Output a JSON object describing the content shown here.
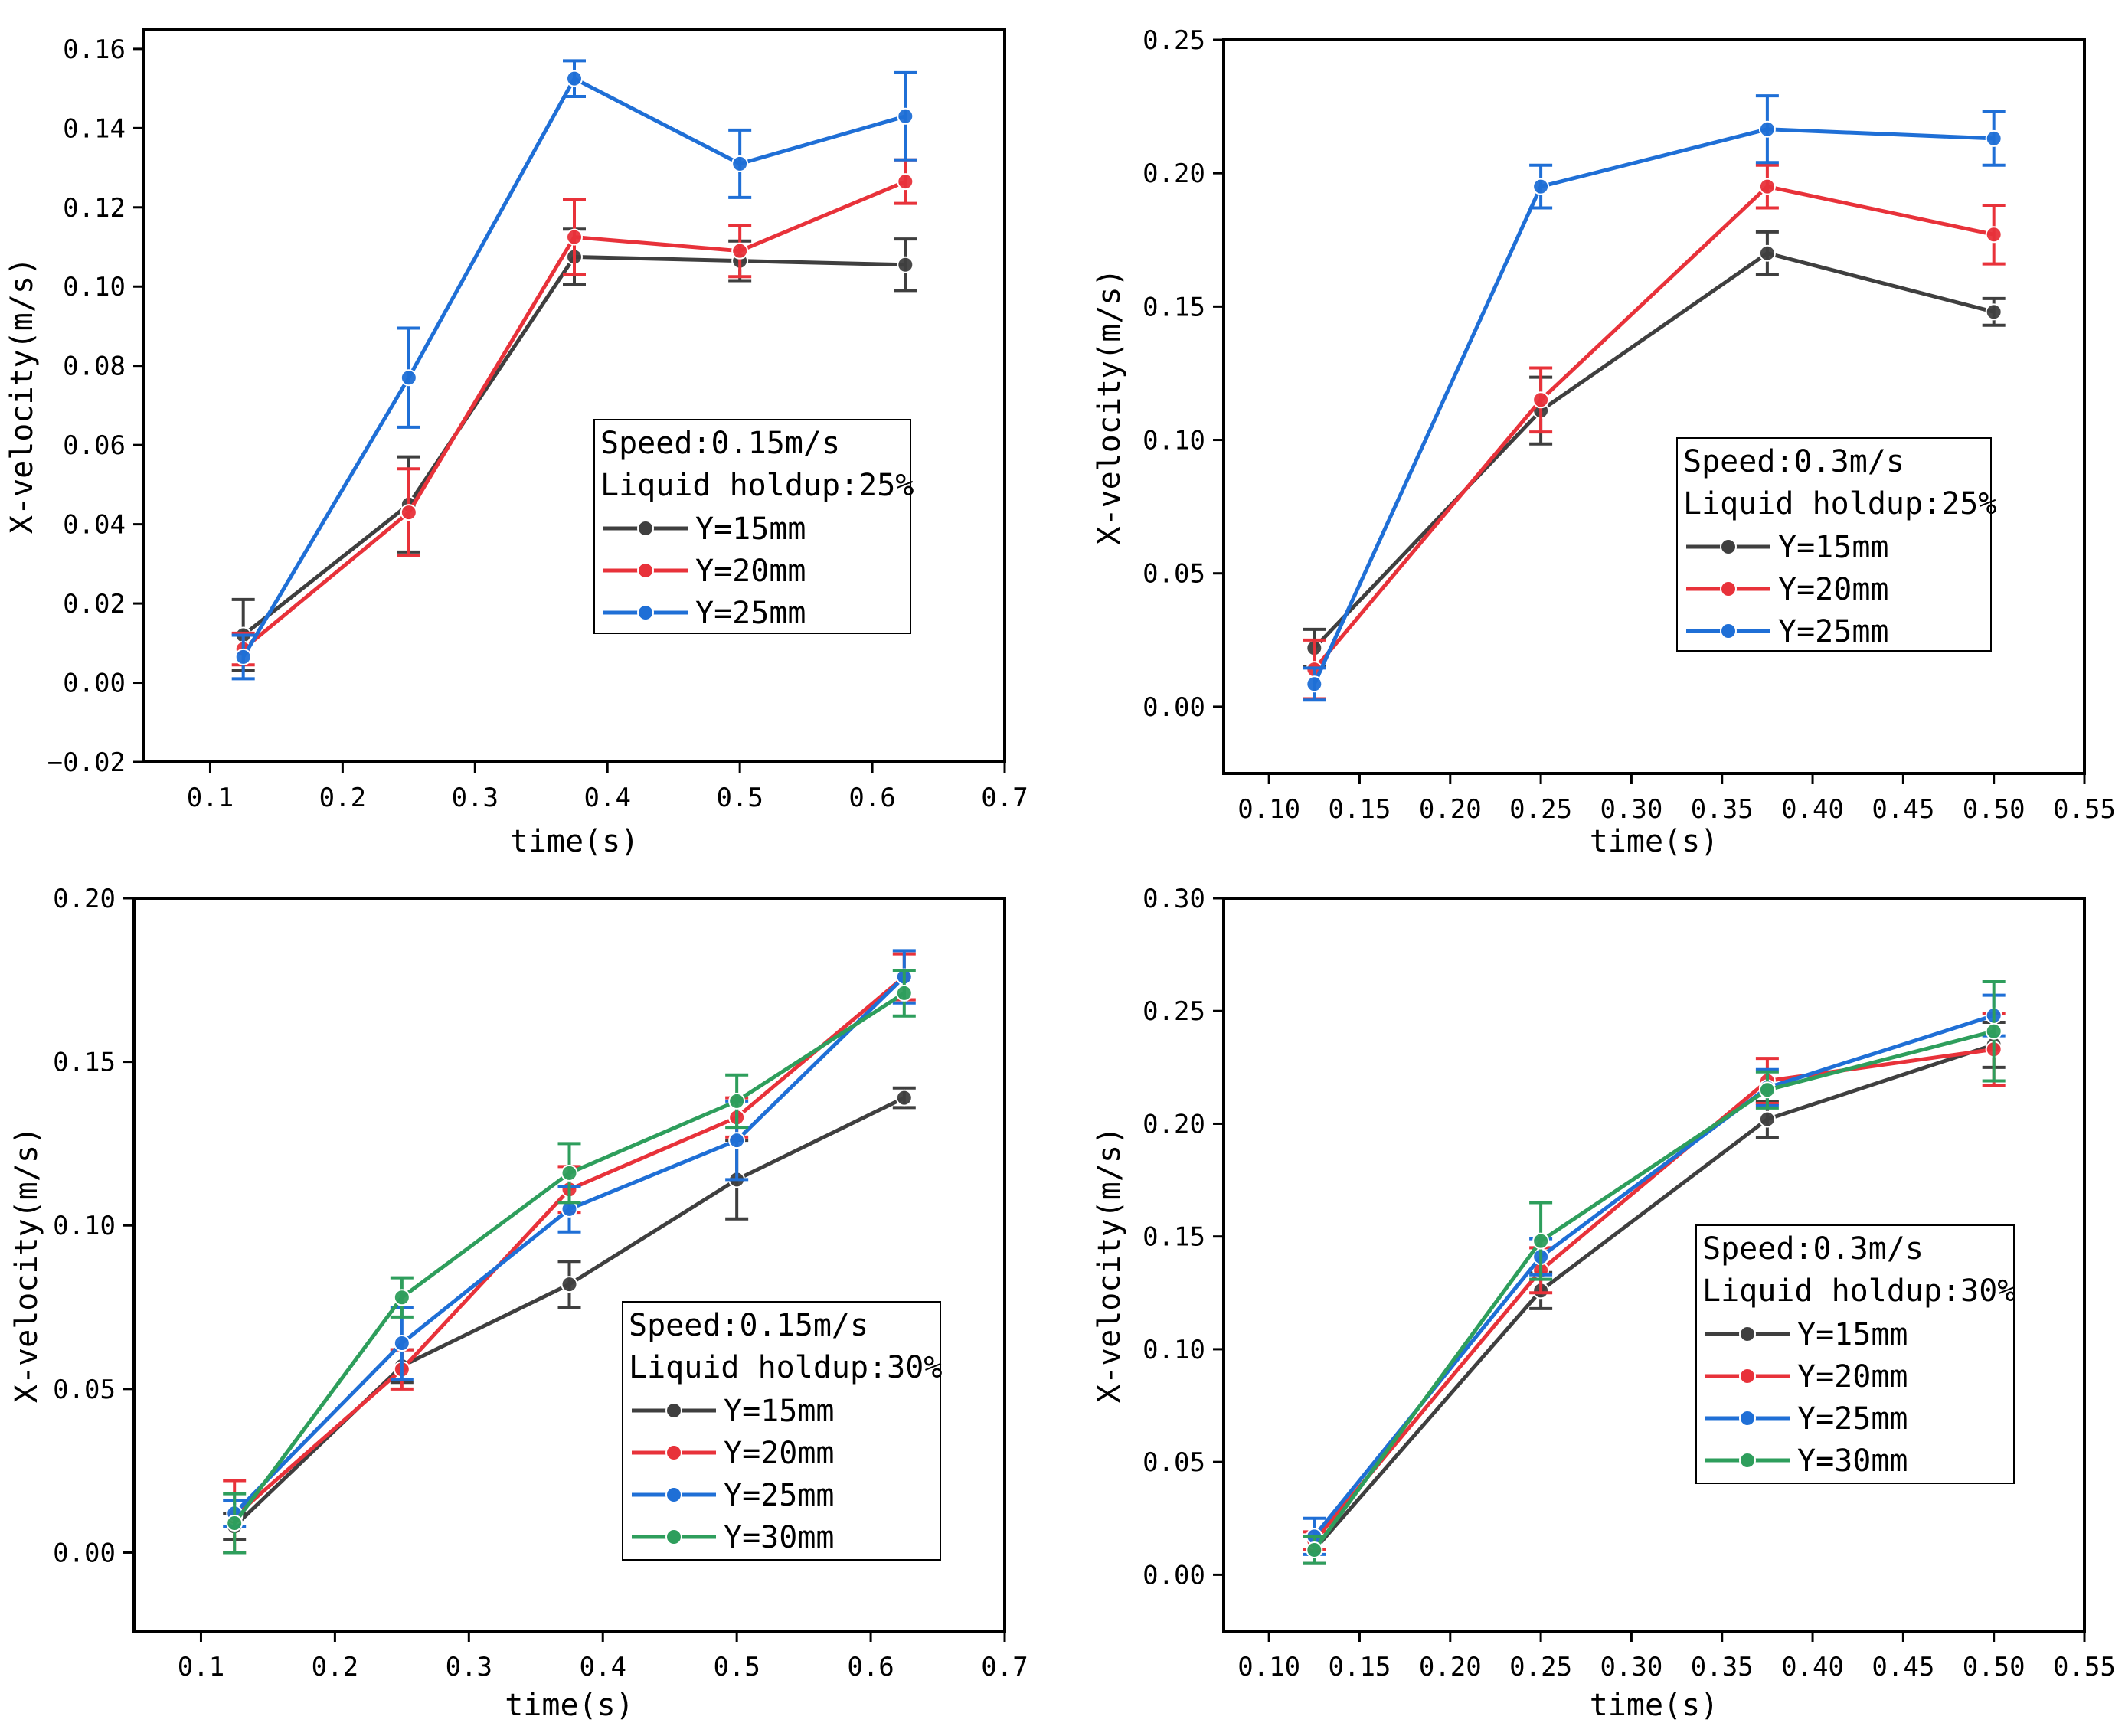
{
  "figure": {
    "description_colors": {
      "Y=15mm": "#3f3f3f",
      "Y=20mm": "#e8323a",
      "Y=25mm": "#1f6fd6",
      "Y=30mm": "#2e9e5c"
    }
  },
  "chart_data": [
    {
      "type": "line",
      "xlabel": "time(s)",
      "ylabel": "X-velocity(m/s)",
      "xlim": [
        0.05,
        0.7
      ],
      "ylim": [
        -0.02,
        0.165
      ],
      "xticks": [
        0.1,
        0.2,
        0.3,
        0.4,
        0.5,
        0.6,
        0.7
      ],
      "xtick_labels": [
        "0.1",
        "0.2",
        "0.3",
        "0.4",
        "0.5",
        "0.6",
        "0.7"
      ],
      "yticks": [
        -0.02,
        0.0,
        0.02,
        0.04,
        0.06,
        0.08,
        0.1,
        0.12,
        0.14,
        0.16
      ],
      "ytick_labels": [
        "−0.02",
        "0.00",
        "0.02",
        "0.04",
        "0.06",
        "0.08",
        "0.10",
        "0.12",
        "0.14",
        "0.16"
      ],
      "legend": {
        "title_lines": [
          "Speed:0.15m/s",
          "Liquid holdup:25%"
        ],
        "position": "center-right"
      },
      "x": [
        0.125,
        0.25,
        0.375,
        0.5,
        0.625
      ],
      "series": [
        {
          "name": "Y=15mm",
          "color": "#3f3f3f",
          "values": [
            0.012,
            0.045,
            0.1075,
            0.1065,
            0.1055
          ],
          "errors": [
            0.009,
            0.012,
            0.007,
            0.005,
            0.0065
          ]
        },
        {
          "name": "Y=20mm",
          "color": "#e8323a",
          "values": [
            0.0085,
            0.043,
            0.1125,
            0.109,
            0.1265
          ],
          "errors": [
            0.004,
            0.011,
            0.0095,
            0.0065,
            0.0055
          ]
        },
        {
          "name": "Y=25mm",
          "color": "#1f6fd6",
          "values": [
            0.0065,
            0.077,
            0.1525,
            0.131,
            0.143
          ],
          "errors": [
            0.0055,
            0.0125,
            0.0045,
            0.0085,
            0.011
          ]
        }
      ]
    },
    {
      "type": "line",
      "xlabel": "time(s)",
      "ylabel": "X-velocity(m/s)",
      "xlim": [
        0.075,
        0.55
      ],
      "ylim": [
        -0.025,
        0.25
      ],
      "xticks": [
        0.1,
        0.15,
        0.2,
        0.25,
        0.3,
        0.35,
        0.4,
        0.45,
        0.5,
        0.55
      ],
      "xtick_labels": [
        "0.10",
        "0.15",
        "0.20",
        "0.25",
        "0.30",
        "0.35",
        "0.40",
        "0.45",
        "0.50",
        "0.55"
      ],
      "yticks": [
        0.0,
        0.05,
        0.1,
        0.15,
        0.2,
        0.25
      ],
      "ytick_labels": [
        "0.00",
        "0.05",
        "0.10",
        "0.15",
        "0.20",
        "0.25"
      ],
      "legend": {
        "title_lines": [
          "Speed:0.3m/s",
          "Liquid holdup:25%"
        ],
        "position": "center-right"
      },
      "x": [
        0.125,
        0.25,
        0.375,
        0.5
      ],
      "series": [
        {
          "name": "Y=15mm",
          "color": "#3f3f3f",
          "values": [
            0.022,
            0.111,
            0.17,
            0.148
          ],
          "errors": [
            0.007,
            0.0125,
            0.008,
            0.005
          ]
        },
        {
          "name": "Y=20mm",
          "color": "#e8323a",
          "values": [
            0.014,
            0.115,
            0.195,
            0.177
          ],
          "errors": [
            0.011,
            0.012,
            0.008,
            0.011
          ]
        },
        {
          "name": "Y=25mm",
          "color": "#1f6fd6",
          "values": [
            0.0085,
            0.195,
            0.2165,
            0.213
          ],
          "errors": [
            0.006,
            0.008,
            0.0125,
            0.01
          ]
        }
      ]
    },
    {
      "type": "line",
      "xlabel": "time(s)",
      "ylabel": "X-velocity(m/s)",
      "xlim": [
        0.05,
        0.7
      ],
      "ylim": [
        -0.024,
        0.2
      ],
      "xticks": [
        0.1,
        0.2,
        0.3,
        0.4,
        0.5,
        0.6,
        0.7
      ],
      "xtick_labels": [
        "0.1",
        "0.2",
        "0.3",
        "0.4",
        "0.5",
        "0.6",
        "0.7"
      ],
      "yticks": [
        0.0,
        0.05,
        0.1,
        0.15,
        0.2
      ],
      "ytick_labels": [
        "0.00",
        "0.05",
        "0.10",
        "0.15",
        "0.20"
      ],
      "legend": {
        "title_lines": [
          "Speed:0.15m/s",
          "Liquid holdup:30%"
        ],
        "position": "bottom-right"
      },
      "x": [
        0.125,
        0.25,
        0.375,
        0.5,
        0.625
      ],
      "series": [
        {
          "name": "Y=15mm",
          "color": "#3f3f3f",
          "values": [
            0.008,
            0.057,
            0.082,
            0.114,
            0.139
          ],
          "errors": [
            0.004,
            0.005,
            0.007,
            0.012,
            0.003
          ]
        },
        {
          "name": "Y=20mm",
          "color": "#e8323a",
          "values": [
            0.011,
            0.056,
            0.111,
            0.133,
            0.176
          ],
          "errors": [
            0.011,
            0.006,
            0.007,
            0.006,
            0.007
          ]
        },
        {
          "name": "Y=25mm",
          "color": "#1f6fd6",
          "values": [
            0.012,
            0.064,
            0.105,
            0.126,
            0.176
          ],
          "errors": [
            0.004,
            0.011,
            0.007,
            0.012,
            0.008
          ]
        },
        {
          "name": "Y=30mm",
          "color": "#2e9e5c",
          "values": [
            0.009,
            0.078,
            0.116,
            0.138,
            0.171
          ],
          "errors": [
            0.009,
            0.006,
            0.009,
            0.008,
            0.007
          ]
        }
      ]
    },
    {
      "type": "line",
      "xlabel": "time(s)",
      "ylabel": "X-velocity(m/s)",
      "xlim": [
        0.075,
        0.55
      ],
      "ylim": [
        -0.025,
        0.3
      ],
      "xticks": [
        0.1,
        0.15,
        0.2,
        0.25,
        0.3,
        0.35,
        0.4,
        0.45,
        0.5,
        0.55
      ],
      "xtick_labels": [
        "0.10",
        "0.15",
        "0.20",
        "0.25",
        "0.30",
        "0.35",
        "0.40",
        "0.45",
        "0.50",
        "0.55"
      ],
      "yticks": [
        0.0,
        0.05,
        0.1,
        0.15,
        0.2,
        0.25,
        0.3
      ],
      "ytick_labels": [
        "0.00",
        "0.05",
        "0.10",
        "0.15",
        "0.20",
        "0.25",
        "0.30"
      ],
      "legend": {
        "title_lines": [
          "Speed:0.3m/s",
          "Liquid holdup:30%"
        ],
        "position": "center-right"
      },
      "x": [
        0.125,
        0.25,
        0.375,
        0.5
      ],
      "series": [
        {
          "name": "Y=15mm",
          "color": "#3f3f3f",
          "values": [
            0.011,
            0.126,
            0.202,
            0.235
          ],
          "errors": [
            0.006,
            0.008,
            0.008,
            0.01
          ]
        },
        {
          "name": "Y=20mm",
          "color": "#e8323a",
          "values": [
            0.015,
            0.135,
            0.219,
            0.233
          ],
          "errors": [
            0.004,
            0.01,
            0.01,
            0.016
          ]
        },
        {
          "name": "Y=25mm",
          "color": "#1f6fd6",
          "values": [
            0.017,
            0.141,
            0.216,
            0.248
          ],
          "errors": [
            0.008,
            0.008,
            0.008,
            0.009
          ]
        },
        {
          "name": "Y=30mm",
          "color": "#2e9e5c",
          "values": [
            0.011,
            0.148,
            0.215,
            0.241
          ],
          "errors": [
            0.006,
            0.017,
            0.008,
            0.022
          ]
        }
      ]
    }
  ]
}
